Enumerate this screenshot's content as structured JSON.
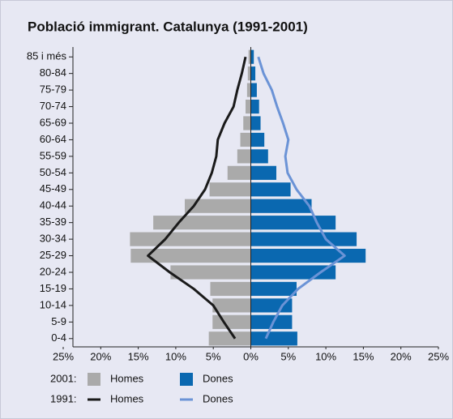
{
  "chart_data": {
    "type": "pyramid",
    "title": "Població immigrant. Catalunya (1991-2001)",
    "categories": [
      "0-4",
      "5-9",
      "10-14",
      "15-19",
      "20-24",
      "25-29",
      "30-34",
      "35-39",
      "40-44",
      "45-49",
      "50-54",
      "55-59",
      "60-64",
      "65-69",
      "70-74",
      "75-79",
      "80-84",
      "85 i més"
    ],
    "series": [
      {
        "name": "Homes",
        "group": "2001:",
        "kind": "bar",
        "color": "#aaaaaa",
        "values": [
          -5.6,
          -5.1,
          -5.1,
          -5.4,
          -10.7,
          -16.0,
          -16.1,
          -13.0,
          -8.8,
          -5.5,
          -3.1,
          -1.8,
          -1.4,
          -1.0,
          -0.7,
          -0.5,
          -0.4,
          -0.3
        ]
      },
      {
        "name": "Dones",
        "group": "2001:",
        "kind": "bar",
        "color": "#0a68b0",
        "values": [
          6.2,
          5.5,
          5.5,
          6.1,
          11.3,
          15.3,
          14.1,
          11.3,
          8.1,
          5.3,
          3.4,
          2.3,
          1.8,
          1.3,
          1.1,
          0.8,
          0.6,
          0.4
        ]
      },
      {
        "name": "Homes",
        "group": "1991:",
        "kind": "line",
        "color": "#1a1a1a",
        "values": [
          -2.1,
          -3.6,
          -5.0,
          -7.6,
          -10.8,
          -13.7,
          -11.4,
          -9.6,
          -7.6,
          -6.1,
          -5.2,
          -4.6,
          -4.4,
          -3.5,
          -2.3,
          -1.8,
          -1.2,
          -0.7
        ]
      },
      {
        "name": "Dones",
        "group": "1991:",
        "kind": "line",
        "color": "#6b93d6",
        "values": [
          2.0,
          3.0,
          4.2,
          6.3,
          9.3,
          12.5,
          10.0,
          8.8,
          7.8,
          6.1,
          4.9,
          4.6,
          5.0,
          4.3,
          3.5,
          2.8,
          1.7,
          1.0
        ]
      }
    ],
    "xlim": [
      -25,
      25
    ],
    "xticks": [
      {
        "value": -25,
        "label": "25%"
      },
      {
        "value": -20,
        "label": "20%"
      },
      {
        "value": -15,
        "label": "15%"
      },
      {
        "value": -10,
        "label": "10%"
      },
      {
        "value": -5,
        "label": "5%"
      },
      {
        "value": 0,
        "label": "0%"
      },
      {
        "value": 5,
        "label": "5%"
      },
      {
        "value": 10,
        "label": "10%"
      },
      {
        "value": 15,
        "label": "15%"
      },
      {
        "value": 20,
        "label": "20%"
      },
      {
        "value": 25,
        "label": "25%"
      }
    ]
  }
}
